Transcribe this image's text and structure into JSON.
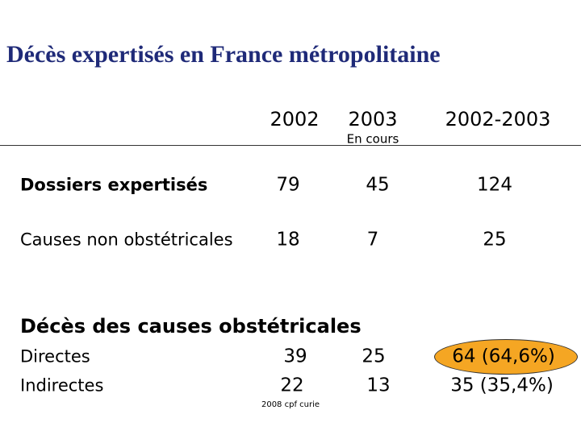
{
  "title": "Décès expertisés en France métropolitaine",
  "table": {
    "columns": [
      "2002",
      "2003",
      "2002-2003"
    ],
    "column_note": "En cours",
    "rows": [
      [
        "Dossiers expertisés",
        79,
        45,
        124
      ],
      [
        "Causes non obstétricales",
        18,
        7,
        25
      ]
    ],
    "section": "Décès des causes obstétricales",
    "section_rows": [
      [
        "Directes",
        39,
        25,
        "64 (64,6%)"
      ],
      [
        "Indirectes",
        22,
        13,
        "35 (35,4%)"
      ]
    ]
  },
  "footer": "2008 cpf curie"
}
